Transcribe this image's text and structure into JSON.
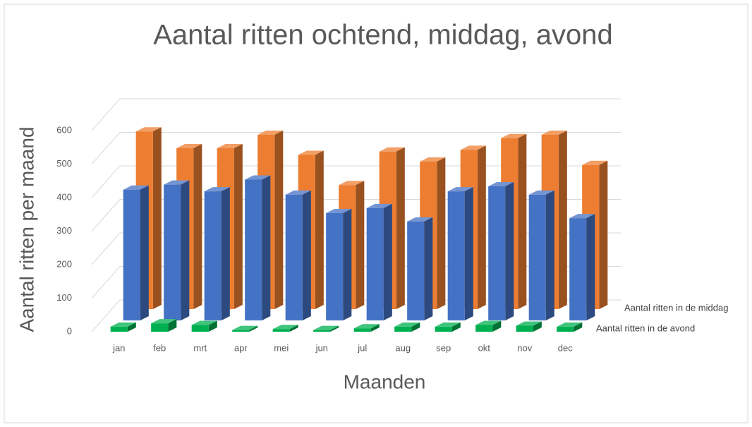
{
  "chart_data": {
    "type": "bar3d",
    "title": "Aantal ritten ochtend, middag, avond",
    "y_label": "Aantal ritten per maand",
    "x_label": "Maanden",
    "categories": [
      "jan",
      "feb",
      "mrt",
      "apr",
      "mei",
      "jun",
      "jul",
      "aug",
      "sep",
      "okt",
      "nov",
      "dec"
    ],
    "series": [
      {
        "name": "Aantal ritten in de avond",
        "color": "#00b050",
        "values": [
          15,
          25,
          20,
          5,
          8,
          5,
          10,
          15,
          15,
          20,
          18,
          15
        ]
      },
      {
        "color": "#4472c4",
        "values": [
          390,
          405,
          385,
          420,
          375,
          320,
          335,
          295,
          385,
          400,
          375,
          305
        ]
      },
      {
        "name": "Aantal ritten in de middag",
        "color": "#ed7d31",
        "values": [
          530,
          480,
          480,
          520,
          460,
          370,
          470,
          440,
          475,
          510,
          520,
          430
        ]
      }
    ],
    "ylim": [
      0,
      600
    ],
    "yticks": [
      0,
      100,
      200,
      300,
      400,
      500,
      600
    ],
    "grid": true
  }
}
